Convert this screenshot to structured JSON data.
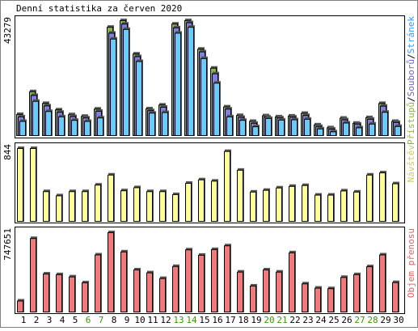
{
  "title": "Denní statistika za červen 2020",
  "days": [
    "1",
    "2",
    "3",
    "4",
    "5",
    "6",
    "7",
    "8",
    "9",
    "10",
    "11",
    "12",
    "13",
    "14",
    "15",
    "16",
    "17",
    "18",
    "19",
    "20",
    "21",
    "22",
    "23",
    "24",
    "25",
    "26",
    "27",
    "28",
    "29",
    "30"
  ],
  "weekend_days": [
    "6",
    "7",
    "13",
    "14",
    "20",
    "21",
    "27",
    "28"
  ],
  "colors": {
    "background": "#ffffff",
    "frame": "#000000",
    "day_label": "#000000",
    "weekend_label": "#339900",
    "hits_bar": "#88b844",
    "files_bar": "#8080e6",
    "pages_bar": "#66ccff",
    "visits_bar": "#ffff99",
    "traffic_bar": "#f07b7b",
    "legend_hits": "#88b844",
    "legend_files": "#6666cc",
    "legend_pages": "#3399ff",
    "legend_visits": "#cccc66",
    "legend_traffic": "#dd6666"
  },
  "chart_data": [
    {
      "type": "bar",
      "ymax_label": "43279",
      "ylim": [
        0,
        43279
      ],
      "legend": {
        "pages": "Stránek",
        "sep1": "/",
        "files": "Souborů",
        "sep2": "/",
        "hits": "Přístupů"
      },
      "categories": [
        "1",
        "2",
        "3",
        "4",
        "5",
        "6",
        "7",
        "8",
        "9",
        "10",
        "11",
        "12",
        "13",
        "14",
        "15",
        "16",
        "17",
        "18",
        "19",
        "20",
        "21",
        "22",
        "23",
        "24",
        "25",
        "26",
        "27",
        "28",
        "29",
        "30"
      ],
      "series": [
        {
          "name": "Přístupů",
          "values": [
            8200,
            16700,
            12300,
            9900,
            8100,
            7500,
            10200,
            40800,
            43279,
            30800,
            10300,
            11700,
            42000,
            43279,
            32600,
            25500,
            11000,
            7800,
            5600,
            7700,
            7300,
            7600,
            8600,
            4300,
            3200,
            6800,
            4900,
            7000,
            12300,
            5600
          ]
        },
        {
          "name": "Souborů",
          "values": [
            7300,
            15300,
            11400,
            9000,
            7400,
            6900,
            9400,
            38600,
            42000,
            29800,
            9600,
            10900,
            40600,
            42500,
            31600,
            23400,
            10200,
            7100,
            4900,
            7200,
            6900,
            7200,
            7800,
            3700,
            2700,
            6200,
            4600,
            6400,
            11300,
            5200
          ]
        },
        {
          "name": "Stránek",
          "values": [
            5600,
            13100,
            9300,
            7300,
            6000,
            5600,
            6900,
            36400,
            40000,
            28000,
            8700,
            8900,
            38600,
            40800,
            29100,
            19900,
            7300,
            6000,
            3600,
            6700,
            6100,
            6200,
            6400,
            2800,
            1700,
            5000,
            3200,
            4600,
            9000,
            3700
          ]
        }
      ]
    },
    {
      "type": "bar",
      "ymax_label": "844",
      "ylim": [
        0,
        844
      ],
      "legend": {
        "visits": "Návštěv"
      },
      "categories": [
        "1",
        "2",
        "3",
        "4",
        "5",
        "6",
        "7",
        "8",
        "9",
        "10",
        "11",
        "12",
        "13",
        "14",
        "15",
        "16",
        "17",
        "18",
        "19",
        "20",
        "21",
        "22",
        "23",
        "24",
        "25",
        "26",
        "27",
        "28",
        "29",
        "30"
      ],
      "series": [
        {
          "name": "Návštěv",
          "values": [
            844,
            844,
            350,
            302,
            350,
            350,
            425,
            540,
            360,
            395,
            350,
            350,
            316,
            445,
            485,
            470,
            810,
            595,
            345,
            365,
            392,
            410,
            420,
            310,
            310,
            358,
            345,
            540,
            565,
            440
          ]
        }
      ]
    },
    {
      "type": "bar",
      "ymax_label": "747651",
      "ylim": [
        0,
        747651
      ],
      "legend": {
        "traffic": "Objem přenosu"
      },
      "categories": [
        "1",
        "2",
        "3",
        "4",
        "5",
        "6",
        "7",
        "8",
        "9",
        "10",
        "11",
        "12",
        "13",
        "14",
        "15",
        "16",
        "17",
        "18",
        "19",
        "20",
        "21",
        "22",
        "23",
        "24",
        "25",
        "26",
        "27",
        "28",
        "29",
        "30"
      ],
      "series": [
        {
          "name": "Objem přenosu",
          "values": [
            110000,
            693000,
            362000,
            356000,
            335000,
            280000,
            540000,
            747651,
            568000,
            400000,
            373000,
            320000,
            432000,
            587000,
            537000,
            590000,
            625000,
            380000,
            250000,
            400000,
            380000,
            560000,
            270000,
            230000,
            225000,
            330000,
            356000,
            430000,
            540000,
            282000
          ]
        }
      ]
    }
  ]
}
